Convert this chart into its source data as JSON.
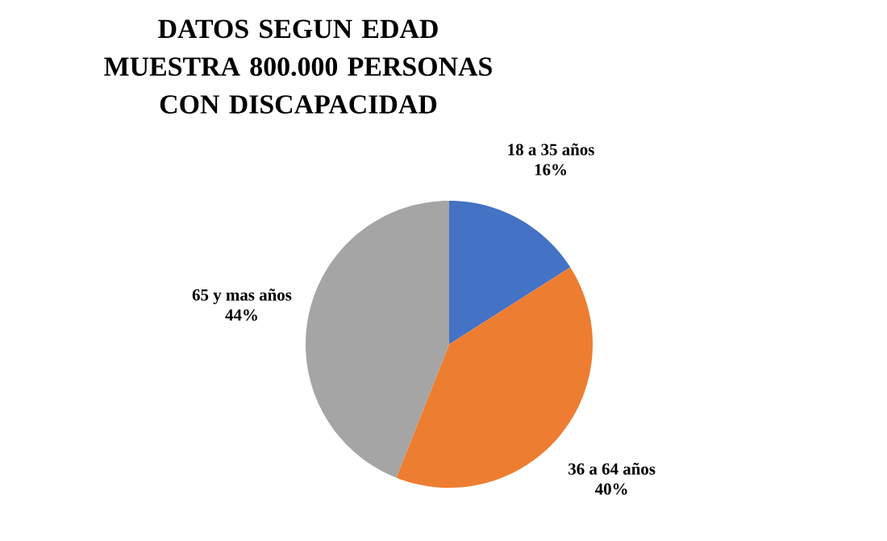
{
  "chart_data": {
    "type": "pie",
    "title": "DATOS SEGUN EDAD",
    "subtitle": "MUESTRA 800.000 PERSONAS CON DISCAPACIDAD",
    "categories": [
      "18 a 35 años",
      "36 a 64 años",
      "65 y mas años"
    ],
    "values": [
      16,
      40,
      44
    ],
    "colors": [
      "#4472c4",
      "#ed7d31",
      "#a5a5a5"
    ],
    "value_labels": [
      "16%",
      "40%",
      "44%"
    ]
  }
}
